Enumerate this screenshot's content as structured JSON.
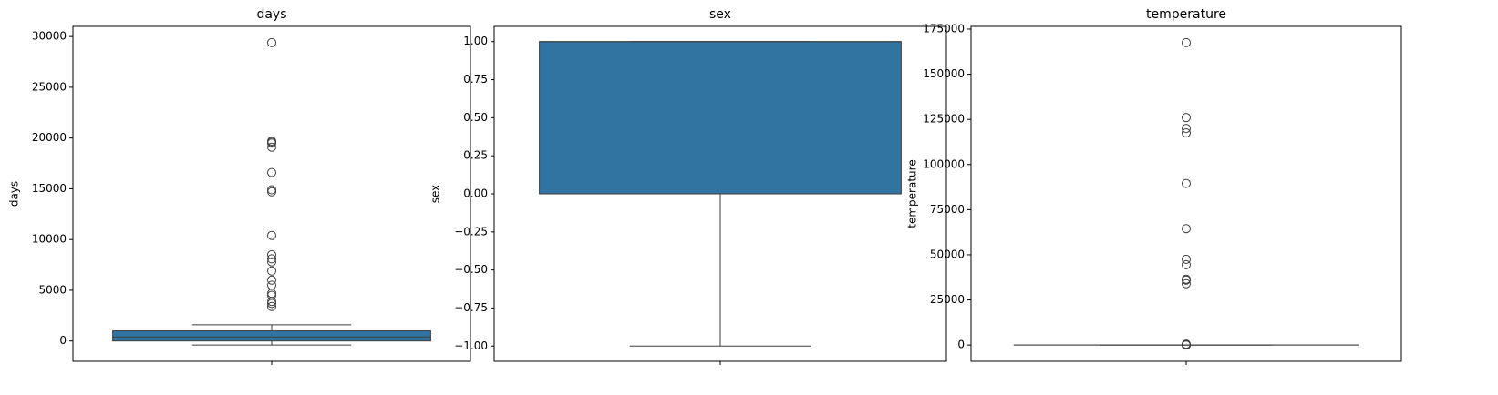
{
  "chart_data": [
    {
      "type": "box",
      "title": "days",
      "ylabel": "days",
      "color": "#3274a1",
      "ylim": [
        -2000,
        31000
      ],
      "yticks": [
        0,
        5000,
        10000,
        15000,
        20000,
        25000,
        30000
      ],
      "q1": 0,
      "median": 400,
      "q3": 1000,
      "whislo": -400,
      "whishi": 1600,
      "outliers": [
        29400,
        19700,
        19600,
        19500,
        19100,
        16600,
        14900,
        14700,
        10400,
        8500,
        8100,
        7800,
        6900,
        6000,
        5500,
        4700,
        4500,
        3900,
        3700,
        3400
      ]
    },
    {
      "type": "box",
      "title": "sex",
      "ylabel": "sex",
      "color": "#3274a1",
      "ylim": [
        -1.1,
        1.1
      ],
      "yticks": [
        {
          "value": -1,
          "label": "−1.00"
        },
        {
          "value": -0.75,
          "label": "−0.75"
        },
        {
          "value": -0.5,
          "label": "−0.50"
        },
        {
          "value": -0.25,
          "label": "−0.25"
        },
        {
          "value": 0,
          "label": "0.00"
        },
        {
          "value": 0.25,
          "label": "0.25"
        },
        {
          "value": 0.5,
          "label": "0.50"
        },
        {
          "value": 0.75,
          "label": "0.75"
        },
        {
          "value": 1,
          "label": "1.00"
        }
      ],
      "q1": 0,
      "median": 1,
      "q3": 1,
      "whislo": -1,
      "whishi": 1,
      "outliers": []
    },
    {
      "type": "box",
      "title": "temperature",
      "ylabel": "temperature",
      "color": "#3274a1",
      "ylim": [
        -9000,
        176500
      ],
      "yticks": [
        0,
        25000,
        50000,
        75000,
        100000,
        125000,
        150000,
        175000
      ],
      "q1": 36.4,
      "median": 36.8,
      "q3": 37.2,
      "whislo": 35.8,
      "whishi": 37.9,
      "outliers": [
        167500,
        126000,
        120000,
        117500,
        89500,
        64500,
        47500,
        44500,
        36500,
        36000,
        34000,
        500,
        300,
        100,
        40,
        33
      ]
    }
  ]
}
